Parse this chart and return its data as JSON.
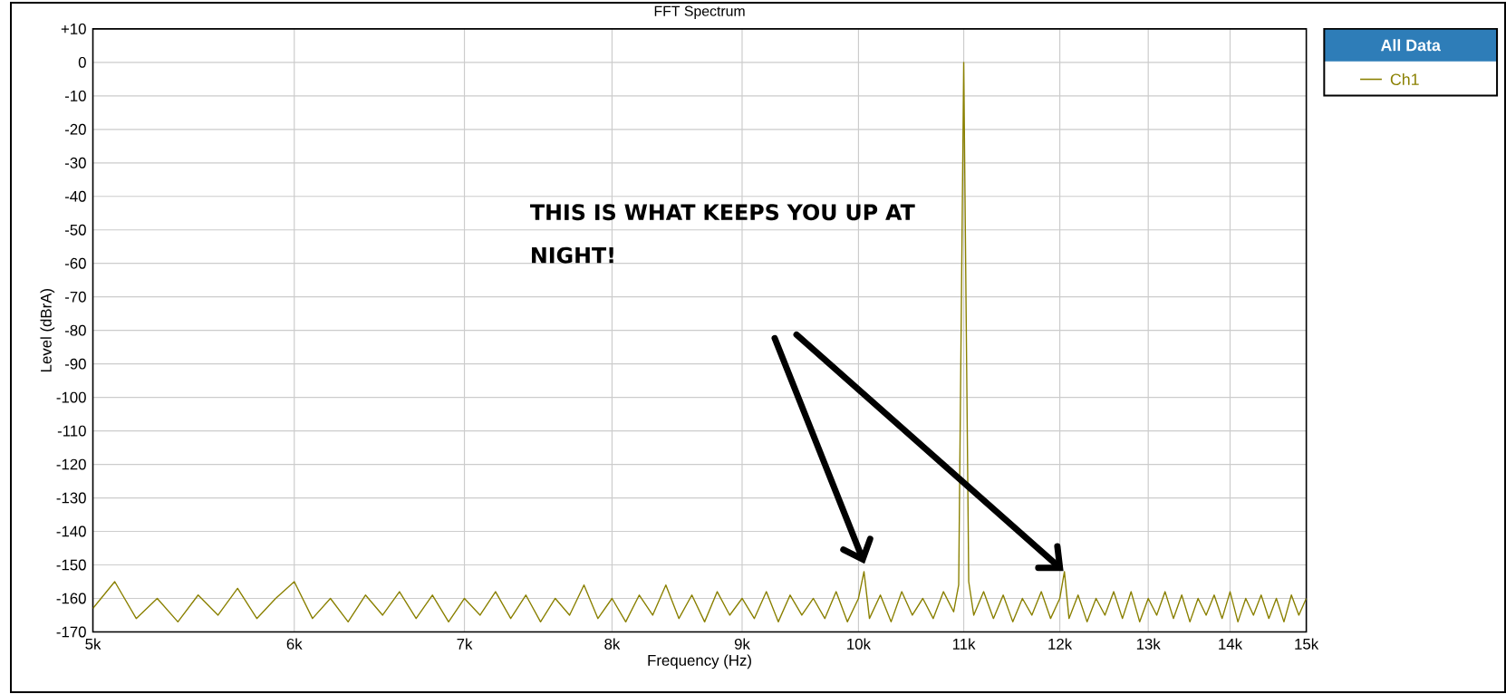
{
  "chart_data": {
    "type": "line",
    "title": "FFT Spectrum",
    "xlabel": "Frequency (Hz)",
    "ylabel": "Level (dBrA)",
    "legend_title": "All Data",
    "legend": "top right",
    "grid": true,
    "log": "x",
    "xlim": [
      5000,
      15000
    ],
    "ylim": [
      -170,
      10
    ],
    "xticks": [
      {
        "value": 5000,
        "label": "5k"
      },
      {
        "value": 6000,
        "label": "6k"
      },
      {
        "value": 7000,
        "label": "7k"
      },
      {
        "value": 8000,
        "label": "8k"
      },
      {
        "value": 9000,
        "label": "9k"
      },
      {
        "value": 10000,
        "label": "10k"
      },
      {
        "value": 11000,
        "label": "11k"
      },
      {
        "value": 12000,
        "label": "12k"
      },
      {
        "value": 13000,
        "label": "13k"
      },
      {
        "value": 14000,
        "label": "14k"
      },
      {
        "value": 15000,
        "label": "15k"
      }
    ],
    "yticks": [
      {
        "value": 10,
        "label": "+10"
      },
      0,
      -10,
      -20,
      -30,
      -40,
      -50,
      -60,
      -70,
      -80,
      -90,
      -100,
      -110,
      -120,
      -130,
      -140,
      -150,
      -160,
      -170
    ],
    "annotations": [
      "THIS IS WHAT KEEPS YOU UP AT NIGHT!"
    ],
    "series": [
      {
        "name": "Ch1",
        "color": "#8a8000",
        "x": [
          5000,
          5100,
          5200,
          5300,
          5400,
          5500,
          5600,
          5700,
          5800,
          5900,
          6000,
          6100,
          6200,
          6300,
          6400,
          6500,
          6600,
          6700,
          6800,
          6900,
          7000,
          7100,
          7200,
          7300,
          7400,
          7500,
          7600,
          7700,
          7800,
          7900,
          8000,
          8100,
          8200,
          8300,
          8400,
          8500,
          8600,
          8700,
          8800,
          8900,
          9000,
          9100,
          9200,
          9300,
          9400,
          9500,
          9600,
          9700,
          9800,
          9900,
          10000,
          10050,
          10100,
          10200,
          10300,
          10400,
          10500,
          10600,
          10700,
          10800,
          10900,
          10950,
          11000,
          11050,
          11100,
          11200,
          11300,
          11400,
          11500,
          11600,
          11700,
          11800,
          11900,
          12000,
          12050,
          12100,
          12200,
          12300,
          12400,
          12500,
          12600,
          12700,
          12800,
          12900,
          13000,
          13100,
          13200,
          13300,
          13400,
          13500,
          13600,
          13700,
          13800,
          13900,
          14000,
          14100,
          14200,
          14300,
          14400,
          14500,
          14600,
          14700,
          14800,
          14900,
          15000
        ],
        "values": [
          -163,
          -155,
          -166,
          -160,
          -167,
          -159,
          -165,
          -157,
          -166,
          -160,
          -155,
          -166,
          -160,
          -167,
          -159,
          -165,
          -158,
          -166,
          -159,
          -167,
          -160,
          -165,
          -158,
          -166,
          -159,
          -167,
          -160,
          -165,
          -156,
          -166,
          -160,
          -167,
          -159,
          -165,
          -156,
          -166,
          -159,
          -167,
          -158,
          -165,
          -160,
          -166,
          -158,
          -167,
          -159,
          -165,
          -160,
          -166,
          -158,
          -167,
          -160,
          -152,
          -166,
          -159,
          -167,
          -158,
          -165,
          -160,
          -166,
          -158,
          -164,
          -156,
          0,
          -155,
          -165,
          -158,
          -166,
          -159,
          -167,
          -160,
          -165,
          -158,
          -166,
          -160,
          -152,
          -166,
          -159,
          -167,
          -160,
          -165,
          -158,
          -166,
          -158,
          -167,
          -160,
          -165,
          -158,
          -166,
          -159,
          -167,
          -160,
          -165,
          -159,
          -166,
          -158,
          -167,
          -160,
          -165,
          -159,
          -166,
          -160,
          -167,
          -159,
          -165,
          -160
        ]
      }
    ]
  }
}
